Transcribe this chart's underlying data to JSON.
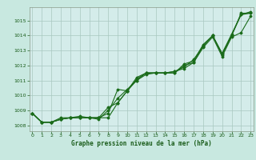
{
  "title": "Graphe pression niveau de la mer (hPa)",
  "bg_color": "#c8e8e0",
  "plot_bg_color": "#d4ecea",
  "line_color": "#1a6b1a",
  "grid_color": "#a8c8c0",
  "tick_color": "#1a5c1a",
  "x_ticks": [
    0,
    1,
    2,
    3,
    4,
    5,
    6,
    7,
    8,
    9,
    10,
    11,
    12,
    13,
    14,
    15,
    16,
    17,
    18,
    19,
    20,
    21,
    22,
    23
  ],
  "y_ticks": [
    1008,
    1009,
    1010,
    1011,
    1012,
    1013,
    1014,
    1015
  ],
  "ylim": [
    1007.6,
    1015.9
  ],
  "xlim": [
    -0.3,
    23.3
  ],
  "series": {
    "line1": [
      1008.8,
      1008.2,
      1008.2,
      1008.4,
      1008.5,
      1008.5,
      1008.5,
      1008.5,
      1009.2,
      1009.5,
      1010.3,
      1011.1,
      1011.5,
      1011.5,
      1011.5,
      1011.5,
      1012.0,
      1012.2,
      1013.3,
      1014.0,
      1012.7,
      1014.0,
      1015.5,
      1015.5
    ],
    "line2": [
      1008.8,
      1008.2,
      1008.2,
      1008.4,
      1008.5,
      1008.5,
      1008.5,
      1008.4,
      1009.0,
      1009.8,
      1010.4,
      1011.0,
      1011.4,
      1011.5,
      1011.5,
      1011.6,
      1011.8,
      1012.2,
      1013.2,
      1013.9,
      1012.6,
      1013.9,
      1014.2,
      1015.3
    ],
    "line3": [
      1008.8,
      1008.2,
      1008.2,
      1008.4,
      1008.5,
      1008.5,
      1008.5,
      1008.5,
      1008.5,
      1009.5,
      1010.3,
      1011.0,
      1011.5,
      1011.5,
      1011.5,
      1011.5,
      1012.1,
      1012.3,
      1013.4,
      1014.0,
      1012.8,
      1014.1,
      1015.4,
      1015.6
    ],
    "line4": [
      1008.8,
      1008.2,
      1008.2,
      1008.5,
      1008.5,
      1008.6,
      1008.5,
      1008.5,
      1008.8,
      1010.4,
      1010.3,
      1011.2,
      1011.5,
      1011.5,
      1011.5,
      1011.6,
      1011.9,
      1012.4,
      1013.3,
      1014.0,
      1012.8,
      1014.0,
      1015.4,
      1015.5
    ]
  }
}
